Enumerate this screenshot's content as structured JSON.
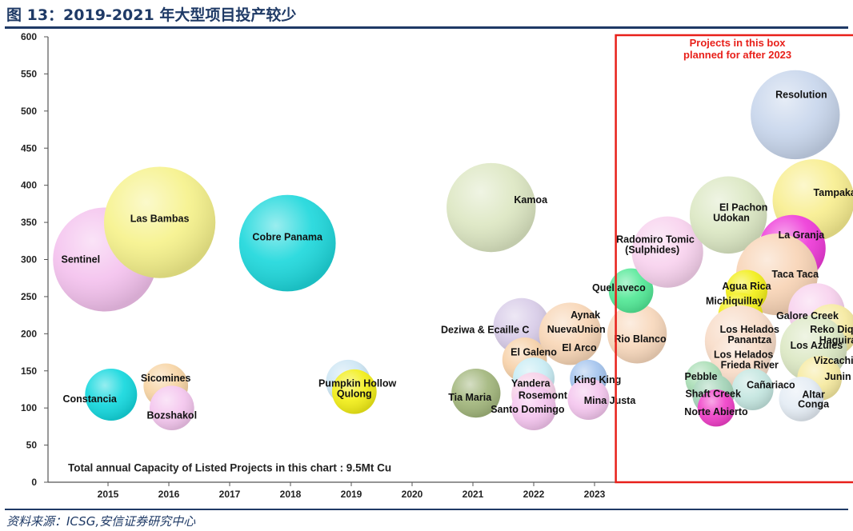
{
  "header": {
    "title": "图 13：2019-2021 年大型项目投产较少"
  },
  "footer": {
    "source": "资料来源：ICSG,安信证券研究中心"
  },
  "chart_data": {
    "type": "bubble",
    "title": "",
    "xlabel": "",
    "ylabel": "",
    "x_categories": [
      "2015",
      "2016",
      "2017",
      "2018",
      "2019",
      "2020",
      "2021",
      "2022",
      "2023"
    ],
    "ylim": [
      0,
      600
    ],
    "y_ticks": [
      0,
      50,
      100,
      150,
      200,
      250,
      300,
      350,
      400,
      450,
      500,
      550,
      600
    ],
    "grid": false,
    "annotation": "Total annual Capacity of Listed Projects in this chart : 9.5Mt Cu",
    "highlight_box": {
      "label_lines": [
        "Projects in this box",
        "planned  for after 2023"
      ],
      "color": "#e8201a",
      "x_from": 2023.35,
      "x_to": 2027.35
    },
    "bubbles": [
      {
        "name": "Sentinel",
        "x": 2014.95,
        "y": 300,
        "size": 70,
        "color": "#f4c2ee"
      },
      {
        "name": "Las Bambas",
        "x": 2015.85,
        "y": 350,
        "size": 75,
        "color": "#f6f28c"
      },
      {
        "name": "Cobre Panama",
        "x": 2017.95,
        "y": 322,
        "size": 65,
        "color": "#1fd8dc"
      },
      {
        "name": "Constancia",
        "x": 2015.05,
        "y": 118,
        "size": 35,
        "color": "#14d8de"
      },
      {
        "name": "Sicomines",
        "x": 2015.95,
        "y": 130,
        "size": 30,
        "color": "#f7d4a4"
      },
      {
        "name": "Bozshakol",
        "x": 2016.05,
        "y": 100,
        "size": 30,
        "color": "#f4c6ee"
      },
      {
        "name": "Pumpkin Hollow",
        "x": 2018.95,
        "y": 135,
        "size": 30,
        "color": "#cde6f4"
      },
      {
        "name": "Qulong",
        "x": 2019.05,
        "y": 122,
        "size": 30,
        "color": "#f2ee18"
      },
      {
        "name": "Kamoa",
        "x": 2021.3,
        "y": 370,
        "size": 60,
        "color": "#dde7c3"
      },
      {
        "name": "Deziwa & Ecaille C",
        "x": 2021.8,
        "y": 210,
        "size": 38,
        "color": "#d8cce8"
      },
      {
        "name": "El Galeno",
        "x": 2021.85,
        "y": 165,
        "size": 30,
        "color": "#f7d2aa"
      },
      {
        "name": "Tia Maria",
        "x": 2021.05,
        "y": 120,
        "size": 33,
        "color": "#a2b67c"
      },
      {
        "name": "Yandera",
        "x": 2022.0,
        "y": 140,
        "size": 28,
        "color": "#c8ecf4"
      },
      {
        "name": "Rosemont",
        "x": 2022.0,
        "y": 118,
        "size": 30,
        "color": "#f6d0e8"
      },
      {
        "name": "Santo Domingo",
        "x": 2022.0,
        "y": 100,
        "size": 30,
        "color": "#f4c4ee"
      },
      {
        "name": "NuevaUnion",
        "x": 2022.6,
        "y": 200,
        "size": 42,
        "color": "#f8d6b6"
      },
      {
        "name": "King King",
        "x": 2022.9,
        "y": 140,
        "size": 25,
        "color": "#a4c4ee"
      },
      {
        "name": "Mina Justa",
        "x": 2022.9,
        "y": 112,
        "size": 28,
        "color": "#f4c6ee"
      },
      {
        "name": "Rio Blanco",
        "x": 2023.7,
        "y": 200,
        "size": 40,
        "color": "#f8d8bc"
      },
      {
        "name": "Quellaveco",
        "x": 2023.6,
        "y": 258,
        "size": 30,
        "color": "#52e896"
      },
      {
        "name": "Radomiro Tomic (Sulphides)",
        "x": 2024.2,
        "y": 310,
        "size": 48,
        "color": "#f8d2ee"
      },
      {
        "name": "El Pachon Udokan",
        "x": 2025.2,
        "y": 360,
        "size": 52,
        "color": "#dce8c4"
      },
      {
        "name": "Resolution",
        "x": 2026.3,
        "y": 495,
        "size": 60,
        "color": "#c8d6ec"
      },
      {
        "name": "Tampakan",
        "x": 2026.6,
        "y": 380,
        "size": 55,
        "color": "#f8ee90"
      },
      {
        "name": "La Granja",
        "x": 2026.25,
        "y": 315,
        "size": 45,
        "color": "#ee3ad8"
      },
      {
        "name": "Taca Taca",
        "x": 2026.0,
        "y": 280,
        "size": 55,
        "color": "#f8d4b6"
      },
      {
        "name": "Agua Rica",
        "x": 2025.5,
        "y": 258,
        "size": 28,
        "color": "#f2ee18"
      },
      {
        "name": "Michiquillay",
        "x": 2025.4,
        "y": 225,
        "size": 30,
        "color": "#f2ee18"
      },
      {
        "name": "Galore Creek",
        "x": 2026.65,
        "y": 230,
        "size": 38,
        "color": "#f8d2ee"
      },
      {
        "name": "Reko Diq",
        "x": 2026.9,
        "y": 205,
        "size": 35,
        "color": "#f6eaa0"
      },
      {
        "name": "Los Helados Panantza",
        "x": 2025.4,
        "y": 190,
        "size": 48,
        "color": "#f8dcc8"
      },
      {
        "name": "Los Helados Frieda River",
        "x": 2025.4,
        "y": 165,
        "size": 40,
        "color": "#f8dcc8"
      },
      {
        "name": "Los Azules Haguira Vizcachitas",
        "x": 2026.6,
        "y": 180,
        "size": 45,
        "color": "#dce8c4"
      },
      {
        "name": "Pebble",
        "x": 2024.8,
        "y": 138,
        "size": 25,
        "color": "#aadeb6"
      },
      {
        "name": "Cañariaco",
        "x": 2025.6,
        "y": 125,
        "size": 28,
        "color": "#c4e6e0"
      },
      {
        "name": "Shaft Creek",
        "x": 2024.95,
        "y": 118,
        "size": 28,
        "color": "#a4d4b8"
      },
      {
        "name": "Junin",
        "x": 2026.7,
        "y": 140,
        "size": 30,
        "color": "#f6eaa0"
      },
      {
        "name": "Altar Conga",
        "x": 2026.4,
        "y": 112,
        "size": 30,
        "color": "#e4ecf4"
      },
      {
        "name": "Norte Abierto",
        "x": 2025.0,
        "y": 100,
        "size": 25,
        "color": "#f040c8"
      }
    ],
    "labels": [
      {
        "text": "Sentinel",
        "x": 2014.55,
        "y": 300
      },
      {
        "text": "Las Bambas",
        "x": 2015.85,
        "y": 355
      },
      {
        "text": "Cobre Panama",
        "x": 2017.95,
        "y": 330
      },
      {
        "text": "Constancia",
        "x": 2014.7,
        "y": 112
      },
      {
        "text": "Sicomines",
        "x": 2015.95,
        "y": 140
      },
      {
        "text": "Bozshakol",
        "x": 2016.05,
        "y": 90
      },
      {
        "text": "Pumpkin Hollow",
        "x": 2019.1,
        "y": 133
      },
      {
        "text": "Qulong",
        "x": 2019.05,
        "y": 119
      },
      {
        "text": "Kamoa",
        "x": 2021.95,
        "y": 380
      },
      {
        "text": "Deziwa & Ecaille C",
        "x": 2021.2,
        "y": 205
      },
      {
        "text": "El Galeno",
        "x": 2022.0,
        "y": 175
      },
      {
        "text": "Tia Maria",
        "x": 2020.95,
        "y": 114
      },
      {
        "text": "Yandera",
        "x": 2021.95,
        "y": 133
      },
      {
        "text": "Rosemont",
        "x": 2022.15,
        "y": 117
      },
      {
        "text": "Santo Domingo",
        "x": 2021.9,
        "y": 98
      },
      {
        "text": "Aynak",
        "x": 2022.85,
        "y": 225
      },
      {
        "text": "NuevaUnion",
        "x": 2022.7,
        "y": 206
      },
      {
        "text": "El Arco",
        "x": 2022.75,
        "y": 181
      },
      {
        "text": "King King",
        "x": 2023.05,
        "y": 138
      },
      {
        "text": "Mina Justa",
        "x": 2023.25,
        "y": 110
      },
      {
        "text": "Rio Blanco",
        "x": 2023.75,
        "y": 193
      },
      {
        "text": "Quellaveco",
        "x": 2023.4,
        "y": 262
      },
      {
        "text": "Radomiro Tomic",
        "x": 2024.0,
        "y": 327
      },
      {
        "text": "(Sulphides)",
        "x": 2023.95,
        "y": 313
      },
      {
        "text": "El Pachon",
        "x": 2025.45,
        "y": 370
      },
      {
        "text": "Udokan",
        "x": 2025.25,
        "y": 356
      },
      {
        "text": "Resolution",
        "x": 2026.4,
        "y": 522
      },
      {
        "text": "Tampakan",
        "x": 2027.0,
        "y": 390
      },
      {
        "text": "La Granja",
        "x": 2026.4,
        "y": 333
      },
      {
        "text": "Taca Taca",
        "x": 2026.3,
        "y": 280
      },
      {
        "text": "Agua Rica",
        "x": 2025.5,
        "y": 264
      },
      {
        "text": "Michiquillay",
        "x": 2025.3,
        "y": 244
      },
      {
        "text": "Galore Creek",
        "x": 2026.5,
        "y": 224
      },
      {
        "text": "Reko Diq",
        "x": 2026.9,
        "y": 206
      },
      {
        "text": "Los Helados",
        "x": 2025.55,
        "y": 206
      },
      {
        "text": "Panantza",
        "x": 2025.55,
        "y": 192
      },
      {
        "text": "Los Azules",
        "x": 2026.65,
        "y": 184
      },
      {
        "text": "Haguira",
        "x": 2027.0,
        "y": 191
      },
      {
        "text": "Los Helados",
        "x": 2025.45,
        "y": 172
      },
      {
        "text": "Frieda River",
        "x": 2025.55,
        "y": 158
      },
      {
        "text": "Vizcachitas",
        "x": 2027.05,
        "y": 164
      },
      {
        "text": "Pebble",
        "x": 2024.75,
        "y": 142
      },
      {
        "text": "Junin",
        "x": 2027.0,
        "y": 142
      },
      {
        "text": "Cañariaco",
        "x": 2025.9,
        "y": 131
      },
      {
        "text": "Shaft Creek",
        "x": 2024.95,
        "y": 119
      },
      {
        "text": "Altar",
        "x": 2026.6,
        "y": 118
      },
      {
        "text": "Conga",
        "x": 2026.6,
        "y": 105
      },
      {
        "text": "Norte Abierto",
        "x": 2025.0,
        "y": 95
      }
    ]
  }
}
